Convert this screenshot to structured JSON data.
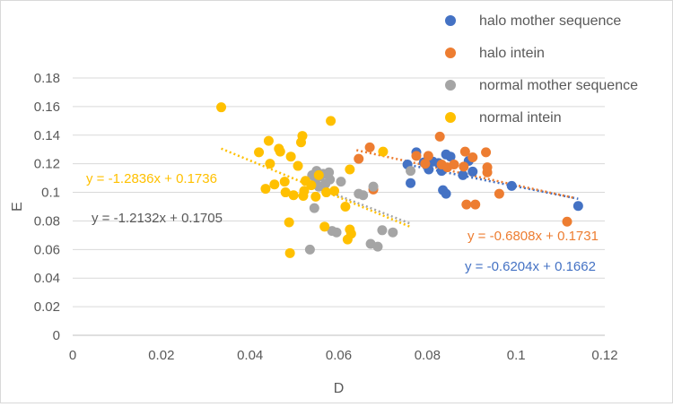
{
  "chart_data": {
    "type": "scatter",
    "xlabel": "D",
    "ylabel": "E",
    "xlim": [
      0,
      0.12
    ],
    "ylim": [
      0,
      0.18
    ],
    "x_ticks": [
      "0",
      "0.02",
      "0.04",
      "0.06",
      "0.08",
      "0.1",
      "0.12"
    ],
    "y_ticks": [
      "0",
      "0.02",
      "0.04",
      "0.06",
      "0.08",
      "0.1",
      "0.12",
      "0.14",
      "0.16",
      "0.18"
    ],
    "grid": "horizontal",
    "legend_position": "top-right",
    "series": [
      {
        "name": "halo mother sequence",
        "color": "#4472c4",
        "points": [
          [
            0.0755,
            0.1195
          ],
          [
            0.0762,
            0.1065
          ],
          [
            0.0775,
            0.128
          ],
          [
            0.0792,
            0.121
          ],
          [
            0.0803,
            0.116
          ],
          [
            0.0812,
            0.1215
          ],
          [
            0.0825,
            0.1205
          ],
          [
            0.0832,
            0.115
          ],
          [
            0.0835,
            0.1015
          ],
          [
            0.0842,
            0.099
          ],
          [
            0.0842,
            0.1265
          ],
          [
            0.0852,
            0.125
          ],
          [
            0.088,
            0.112
          ],
          [
            0.0893,
            0.122
          ],
          [
            0.0902,
            0.1145
          ],
          [
            0.099,
            0.1045
          ],
          [
            0.114,
            0.0905
          ]
        ],
        "trendline": {
          "slope": -0.6204,
          "intercept": 0.1662,
          "x_from": 0.075,
          "x_to": 0.114,
          "label": "y = -0.6204x + 0.1662"
        }
      },
      {
        "name": "halo intein",
        "color": "#ed7d31",
        "points": [
          [
            0.0645,
            0.1235
          ],
          [
            0.067,
            0.1315
          ],
          [
            0.0678,
            0.102
          ],
          [
            0.0775,
            0.1255
          ],
          [
            0.0795,
            0.12
          ],
          [
            0.0802,
            0.1255
          ],
          [
            0.0828,
            0.139
          ],
          [
            0.0832,
            0.1195
          ],
          [
            0.0845,
            0.1175
          ],
          [
            0.086,
            0.1195
          ],
          [
            0.0882,
            0.118
          ],
          [
            0.0885,
            0.1285
          ],
          [
            0.0888,
            0.0915
          ],
          [
            0.0902,
            0.1245
          ],
          [
            0.0908,
            0.0915
          ],
          [
            0.0932,
            0.128
          ],
          [
            0.0935,
            0.114
          ],
          [
            0.0935,
            0.1175
          ],
          [
            0.0962,
            0.099
          ],
          [
            0.1115,
            0.0795
          ]
        ],
        "trendline": {
          "slope": -0.6808,
          "intercept": 0.1731,
          "x_from": 0.064,
          "x_to": 0.113,
          "label": "y = -0.6808x + 0.1731"
        }
      },
      {
        "name": "normal mother sequence",
        "color": "#a5a5a5",
        "points": [
          [
            0.0535,
            0.06
          ],
          [
            0.054,
            0.112
          ],
          [
            0.0545,
            0.089
          ],
          [
            0.0548,
            0.109
          ],
          [
            0.055,
            0.115
          ],
          [
            0.0555,
            0.104
          ],
          [
            0.0558,
            0.111
          ],
          [
            0.0565,
            0.113
          ],
          [
            0.057,
            0.106
          ],
          [
            0.0578,
            0.114
          ],
          [
            0.058,
            0.109
          ],
          [
            0.0585,
            0.073
          ],
          [
            0.0595,
            0.072
          ],
          [
            0.0605,
            0.1075
          ],
          [
            0.0645,
            0.099
          ],
          [
            0.0655,
            0.098
          ],
          [
            0.0672,
            0.064
          ],
          [
            0.0678,
            0.104
          ],
          [
            0.0688,
            0.062
          ],
          [
            0.0698,
            0.0735
          ],
          [
            0.0722,
            0.072
          ],
          [
            0.0762,
            0.115
          ]
        ],
        "trendline": {
          "slope": -1.2132,
          "intercept": 0.1705,
          "x_from": 0.052,
          "x_to": 0.0762,
          "label": "y = -1.2132x + 0.1705"
        }
      },
      {
        "name": "normal intein",
        "color": "#ffc000",
        "points": [
          [
            0.0335,
            0.1595
          ],
          [
            0.042,
            0.128
          ],
          [
            0.0435,
            0.1025
          ],
          [
            0.0442,
            0.136
          ],
          [
            0.0445,
            0.12
          ],
          [
            0.0455,
            0.1055
          ],
          [
            0.0465,
            0.1305
          ],
          [
            0.0468,
            0.1285
          ],
          [
            0.0478,
            0.1075
          ],
          [
            0.048,
            0.1
          ],
          [
            0.0488,
            0.079
          ],
          [
            0.049,
            0.0575
          ],
          [
            0.0492,
            0.125
          ],
          [
            0.0498,
            0.098
          ],
          [
            0.0508,
            0.1185
          ],
          [
            0.0515,
            0.135
          ],
          [
            0.0518,
            0.1395
          ],
          [
            0.052,
            0.0975
          ],
          [
            0.0522,
            0.101
          ],
          [
            0.0525,
            0.108
          ],
          [
            0.0538,
            0.105
          ],
          [
            0.0548,
            0.097
          ],
          [
            0.0555,
            0.112
          ],
          [
            0.0568,
            0.076
          ],
          [
            0.0572,
            0.1
          ],
          [
            0.0582,
            0.15
          ],
          [
            0.059,
            0.101
          ],
          [
            0.0615,
            0.09
          ],
          [
            0.062,
            0.067
          ],
          [
            0.0625,
            0.116
          ],
          [
            0.0625,
            0.074
          ],
          [
            0.0628,
            0.071
          ],
          [
            0.07,
            0.1285
          ]
        ],
        "trendline": {
          "slope": -1.2836,
          "intercept": 0.1736,
          "x_from": 0.0335,
          "x_to": 0.0765,
          "label": "y = -1.2836x + 0.1736"
        }
      }
    ]
  }
}
